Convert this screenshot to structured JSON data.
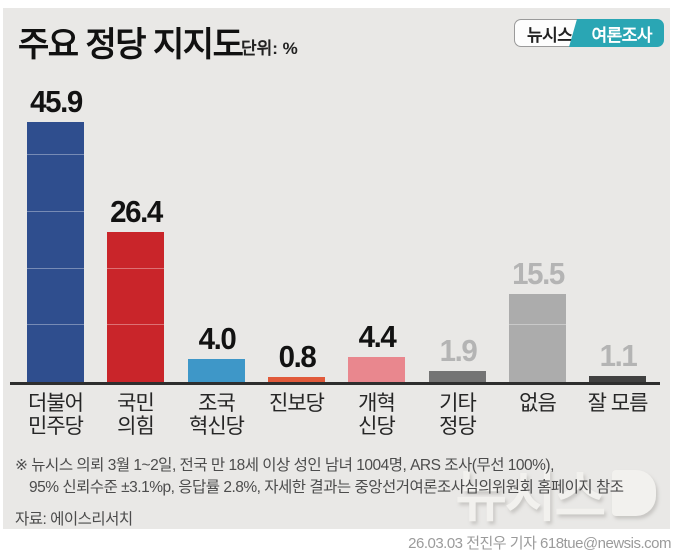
{
  "page": {
    "background": "#ffffff",
    "panel_background": "#e9e8e6"
  },
  "header": {
    "title": "주요 정당 지지도",
    "unit_label": "단위: %",
    "badge": {
      "left_label": "뉴시스",
      "right_label": "여론조사",
      "accent_color": "#2aa6b4"
    }
  },
  "chart_data": {
    "type": "bar",
    "title": "주요 정당 지지도",
    "unit": "%",
    "categories": [
      "더불어민주당",
      "국민의힘",
      "조국혁신당",
      "진보당",
      "개혁신당",
      "기타정당",
      "없음",
      "잘 모름"
    ],
    "category_lines": [
      [
        "더불어",
        "민주당"
      ],
      [
        "국민",
        "의힘"
      ],
      [
        "조국",
        "혁신당"
      ],
      [
        "진보당"
      ],
      [
        "개혁",
        "신당"
      ],
      [
        "기타",
        "정당"
      ],
      [
        "없음"
      ],
      [
        "잘 모름"
      ]
    ],
    "values": [
      45.9,
      26.4,
      4.0,
      0.8,
      4.4,
      1.9,
      15.5,
      1.1
    ],
    "value_labels": [
      "45.9",
      "26.4",
      "4.0",
      "0.8",
      "4.4",
      "1.9",
      "15.5",
      "1.1"
    ],
    "bar_colors": [
      "#2f4e8e",
      "#c9252a",
      "#3e97c8",
      "#e15a3b",
      "#e9878e",
      "#747474",
      "#acacac",
      "#414141"
    ],
    "value_label_colors": [
      "#121212",
      "#121212",
      "#121212",
      "#121212",
      "#121212",
      "#b4b4b4",
      "#b4b4b4",
      "#b4b4b4"
    ],
    "ylim": [
      0,
      50
    ],
    "segment_interval": 10,
    "grid": "off",
    "legend": "none",
    "axis_color": "#2e2e2e"
  },
  "footnote": {
    "line1": "※ 뉴시스 의뢰 3월 1~2일, 전국 만 18세 이상 성인 남녀 1004명, ARS 조사(무선 100%),",
    "line2": "95% 신뢰수준 ±3.1%p, 응답률 2.8%, 자세한 결과는 중앙선거여론조사심의위원회 홈페이지 참조",
    "source": "자료: 에이스리서치"
  },
  "watermark": {
    "text": "뉴시스"
  },
  "credit": "26.03.03 전진우 기자 618tue@newsis.com"
}
